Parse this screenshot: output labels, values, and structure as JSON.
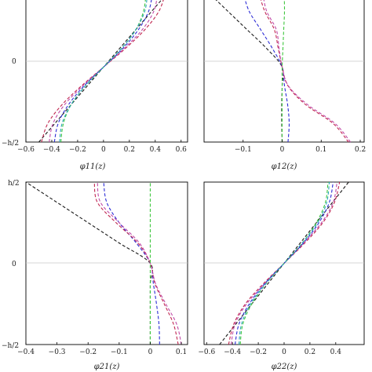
{
  "figure": {
    "y_tick_labels": [
      "h/2",
      "0",
      "−h/2"
    ]
  },
  "colors": {
    "black": "#1a1a1a",
    "blue": "#2c2cd6",
    "red": "#c0264f",
    "magenta": "#c04aa8",
    "green": "#3ec63e",
    "cyan": "#2aa6b8"
  },
  "chart_data": [
    {
      "id": "phi11",
      "type": "line",
      "xlabel": "φ11(z)",
      "xlim": [
        -0.6,
        0.65
      ],
      "ylim": [
        -1,
        1
      ],
      "xticks": [
        -0.6,
        -0.4,
        -0.2,
        0,
        0.2,
        0.4,
        0.6
      ],
      "xtick_labels": [
        "−0.6",
        "−0.4",
        "−0.2",
        "0",
        "0.2",
        "0.4",
        "0.6"
      ],
      "y_ticks_shown": [
        "0",
        "−h/2"
      ],
      "z": [
        -1,
        -0.75,
        -0.5,
        -0.25,
        0,
        0.25,
        0.5,
        0.75,
        1
      ],
      "series": [
        {
          "color": "black",
          "values": [
            -0.5,
            -0.375,
            -0.25,
            -0.125,
            0,
            0.125,
            0.25,
            0.375,
            0.5
          ]
        },
        {
          "color": "red",
          "values": [
            -0.48,
            -0.43,
            -0.32,
            -0.17,
            0,
            0.17,
            0.32,
            0.43,
            0.48
          ]
        },
        {
          "color": "magenta",
          "values": [
            -0.42,
            -0.39,
            -0.3,
            -0.16,
            0,
            0.16,
            0.3,
            0.39,
            0.42
          ]
        },
        {
          "color": "blue",
          "values": [
            -0.38,
            -0.35,
            -0.27,
            -0.15,
            0,
            0.15,
            0.27,
            0.35,
            0.38
          ]
        },
        {
          "color": "green",
          "values": [
            -0.33,
            -0.31,
            -0.25,
            -0.14,
            0,
            0.14,
            0.25,
            0.31,
            0.33
          ]
        },
        {
          "color": "cyan",
          "values": [
            -0.34,
            -0.32,
            -0.25,
            -0.14,
            0,
            0.14,
            0.25,
            0.32,
            0.34
          ]
        }
      ]
    },
    {
      "id": "phi12",
      "type": "line",
      "xlabel": "φ12(z)",
      "xlim": [
        -0.2,
        0.21
      ],
      "ylim": [
        -1,
        1
      ],
      "xticks": [
        -0.1,
        0,
        0.1,
        0.2
      ],
      "xtick_labels": [
        "−0.1",
        "0",
        "0.1",
        "0.2"
      ],
      "y_ticks_shown": [],
      "z": [
        -1,
        -0.75,
        -0.5,
        -0.25,
        0,
        0.25,
        0.5,
        0.75,
        1
      ],
      "series": [
        {
          "color": "black",
          "values": [
            0,
            -0.001,
            -0.001,
            0,
            0,
            -0.04,
            -0.09,
            -0.14,
            -0.19
          ]
        },
        {
          "color": "blue",
          "values": [
            0.015,
            0.018,
            0.014,
            0.006,
            0,
            -0.025,
            -0.055,
            -0.085,
            -0.1
          ]
        },
        {
          "color": "red",
          "values": [
            0.17,
            0.13,
            0.06,
            0.015,
            0,
            -0.01,
            -0.02,
            -0.045,
            -0.06
          ]
        },
        {
          "color": "magenta",
          "values": [
            0.175,
            0.135,
            0.065,
            0.016,
            0,
            -0.008,
            -0.015,
            -0.04,
            -0.05
          ]
        },
        {
          "color": "green",
          "values": [
            0,
            0,
            0,
            0,
            0,
            0.002,
            0.004,
            0.006,
            0.005
          ]
        }
      ]
    },
    {
      "id": "phi21",
      "type": "line",
      "xlabel": "φ21(z)",
      "xlim": [
        -0.4,
        0.12
      ],
      "ylim": [
        -1,
        1
      ],
      "xticks": [
        -0.4,
        -0.3,
        -0.2,
        -0.1,
        0,
        0.1
      ],
      "xtick_labels": [
        "−0.4",
        "−0.3",
        "−0.2",
        "−0.1",
        "0",
        "0.1"
      ],
      "y_ticks_shown": [
        "h/2",
        "0",
        "−h/2"
      ],
      "z": [
        -1,
        -0.75,
        -0.5,
        -0.25,
        0,
        0.25,
        0.5,
        0.75,
        1
      ],
      "series": [
        {
          "color": "black",
          "values": [
            0,
            0,
            0,
            0,
            0,
            -0.1,
            -0.2,
            -0.3,
            -0.4
          ]
        },
        {
          "color": "blue",
          "values": [
            0.03,
            0.028,
            0.02,
            0.01,
            0,
            -0.045,
            -0.1,
            -0.14,
            -0.15
          ]
        },
        {
          "color": "red",
          "values": [
            0.09,
            0.075,
            0.045,
            0.015,
            0,
            -0.04,
            -0.11,
            -0.17,
            -0.18
          ]
        },
        {
          "color": "magenta",
          "values": [
            0.1,
            0.085,
            0.05,
            0.017,
            0,
            -0.035,
            -0.1,
            -0.16,
            -0.17
          ]
        },
        {
          "color": "green",
          "values": [
            0,
            0,
            0,
            0,
            0,
            0,
            0,
            0,
            0
          ]
        }
      ]
    },
    {
      "id": "phi22",
      "type": "line",
      "xlabel": "φ22(z)",
      "xlim": [
        -0.62,
        0.62
      ],
      "ylim": [
        -1,
        1
      ],
      "xticks": [
        -0.6,
        -0.4,
        -0.2,
        0,
        0.2,
        0.4
      ],
      "xtick_labels": [
        "−0.6",
        "−0.4",
        "−0.2",
        "0",
        "0.2",
        "0.4"
      ],
      "y_ticks_shown": [],
      "z": [
        -1,
        -0.75,
        -0.5,
        -0.25,
        0,
        0.25,
        0.5,
        0.75,
        1
      ],
      "series": [
        {
          "color": "black",
          "values": [
            -0.5,
            -0.375,
            -0.25,
            -0.125,
            0,
            0.125,
            0.25,
            0.375,
            0.5
          ]
        },
        {
          "color": "red",
          "values": [
            -0.43,
            -0.39,
            -0.3,
            -0.16,
            0,
            0.16,
            0.3,
            0.39,
            0.43
          ]
        },
        {
          "color": "magenta",
          "values": [
            -0.41,
            -0.38,
            -0.29,
            -0.15,
            0,
            0.15,
            0.29,
            0.38,
            0.41
          ]
        },
        {
          "color": "blue",
          "values": [
            -0.38,
            -0.35,
            -0.27,
            -0.15,
            0,
            0.15,
            0.27,
            0.35,
            0.38
          ]
        },
        {
          "color": "green",
          "values": [
            -0.34,
            -0.32,
            -0.25,
            -0.14,
            0,
            0.14,
            0.25,
            0.32,
            0.34
          ]
        },
        {
          "color": "cyan",
          "values": [
            -0.35,
            -0.33,
            -0.26,
            -0.14,
            0,
            0.14,
            0.26,
            0.33,
            0.35
          ]
        }
      ]
    }
  ]
}
